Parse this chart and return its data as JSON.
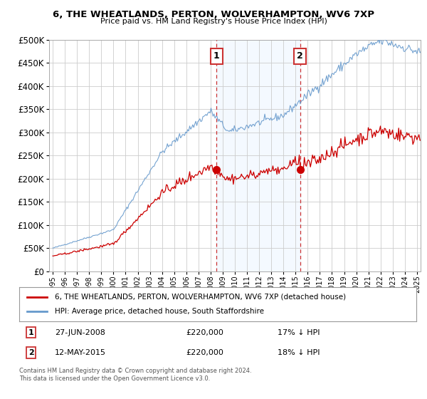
{
  "title": "6, THE WHEATLANDS, PERTON, WOLVERHAMPTON, WV6 7XP",
  "subtitle": "Price paid vs. HM Land Registry's House Price Index (HPI)",
  "legend_line1": "6, THE WHEATLANDS, PERTON, WOLVERHAMPTON, WV6 7XP (detached house)",
  "legend_line2": "HPI: Average price, detached house, South Staffordshire",
  "annotation1_date": "27-JUN-2008",
  "annotation1_price": "£220,000",
  "annotation1_hpi": "17% ↓ HPI",
  "annotation2_date": "12-MAY-2015",
  "annotation2_price": "£220,000",
  "annotation2_hpi": "18% ↓ HPI",
  "footnote": "Contains HM Land Registry data © Crown copyright and database right 2024.\nThis data is licensed under the Open Government Licence v3.0.",
  "hpi_color": "#6699cc",
  "price_color": "#cc0000",
  "vline_color": "#cc3333",
  "shade_color": "#ddeeff",
  "annotation_box_color": "#cc3333",
  "ylim_min": 0,
  "ylim_max": 500000,
  "sale1_year": 2008.5,
  "sale1_price": 220000,
  "sale2_year": 2015.37,
  "sale2_price": 220000,
  "xmin": 1994.7,
  "xmax": 2025.3
}
